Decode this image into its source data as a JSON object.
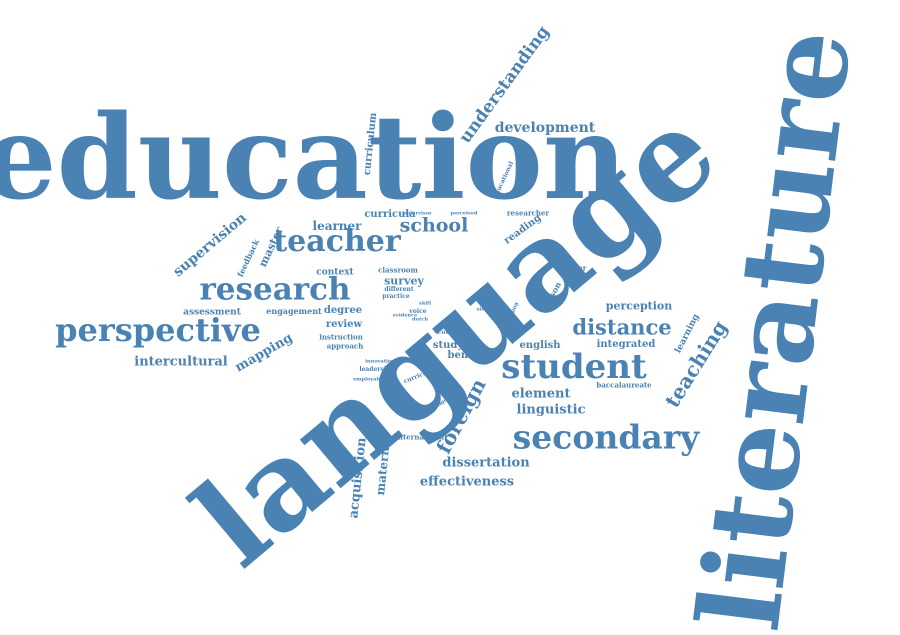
{
  "color": "#4a82b4",
  "words": [
    {
      "text": "education",
      "size": 0.93
    },
    {
      "text": "language",
      "size": 1.0
    },
    {
      "text": "literature",
      "size": 0.89
    },
    {
      "text": "student",
      "size": 0.27
    },
    {
      "text": "secondary",
      "size": 0.26
    },
    {
      "text": "teacher",
      "size": 0.24
    },
    {
      "text": "research",
      "size": 0.25
    },
    {
      "text": "perspective",
      "size": 0.26
    },
    {
      "text": "distance",
      "size": 0.16
    },
    {
      "text": "teaching",
      "size": 0.16
    },
    {
      "text": "foreign",
      "size": 0.16
    },
    {
      "text": "school",
      "size": 0.16
    },
    {
      "text": "understanding",
      "size": 0.14
    },
    {
      "text": "development",
      "size": 0.11
    },
    {
      "text": "supervision",
      "size": 0.12
    },
    {
      "text": "acquisition",
      "size": 0.11
    },
    {
      "text": "material",
      "size": 0.1
    },
    {
      "text": "dissertation",
      "size": 0.11
    },
    {
      "text": "effectiveness",
      "size": 0.11
    },
    {
      "text": "intercultural",
      "size": 0.11
    },
    {
      "text": "mapping",
      "size": 0.11
    },
    {
      "text": "linguistic",
      "size": 0.11
    },
    {
      "text": "element",
      "size": 0.11
    },
    {
      "text": "learner",
      "size": 0.1
    },
    {
      "text": "curriculum",
      "size": 0.08
    },
    {
      "text": "curricula",
      "size": 0.08
    },
    {
      "text": "survey",
      "size": 0.09
    },
    {
      "text": "master",
      "size": 0.09
    },
    {
      "text": "degree",
      "size": 0.08
    },
    {
      "text": "review",
      "size": 0.08
    },
    {
      "text": "context",
      "size": 0.07
    },
    {
      "text": "assessment",
      "size": 0.07
    },
    {
      "text": "engagement",
      "size": 0.06
    },
    {
      "text": "instruction",
      "size": 0.05
    },
    {
      "text": "approach",
      "size": 0.05
    },
    {
      "text": "feedback",
      "size": 0.06
    },
    {
      "text": "perception",
      "size": 0.09
    },
    {
      "text": "integrated",
      "size": 0.08
    },
    {
      "text": "english",
      "size": 0.08
    },
    {
      "text": "study",
      "size": 0.08
    },
    {
      "text": "benefit",
      "size": 0.08
    },
    {
      "text": "baccalaureate",
      "size": 0.06
    },
    {
      "text": "learning",
      "size": 0.07
    },
    {
      "text": "reading",
      "size": 0.08
    },
    {
      "text": "researcher",
      "size": 0.05
    },
    {
      "text": "lesson",
      "size": 0.06
    },
    {
      "text": "speaker",
      "size": 0.05
    },
    {
      "text": "educational",
      "size": 0.04
    },
    {
      "text": "classroom",
      "size": 0.05
    },
    {
      "text": "different",
      "size": 0.05
    },
    {
      "text": "practice",
      "size": 0.04
    },
    {
      "text": "leadership",
      "size": 0.04
    },
    {
      "text": "international",
      "size": 0.05
    },
    {
      "text": "programme",
      "size": 0.04
    },
    {
      "text": "writing",
      "size": 0.04
    },
    {
      "text": "countrie",
      "size": 0.04
    },
    {
      "text": "voice",
      "size": 0.04
    },
    {
      "text": "dutch",
      "size": 0.03
    },
    {
      "text": "stories",
      "size": 0.03
    },
    {
      "text": "supervisor",
      "size": 0.03
    },
    {
      "text": "perceived",
      "size": 0.03
    },
    {
      "text": "curricular",
      "size": 0.04
    },
    {
      "text": "evidence",
      "size": 0.03
    },
    {
      "text": "employability",
      "size": 0.03
    },
    {
      "text": "factor",
      "size": 0.03
    },
    {
      "text": "finding",
      "size": 0.03
    },
    {
      "text": "skill",
      "size": 0.03
    },
    {
      "text": "innovation",
      "size": 0.03
    }
  ]
}
